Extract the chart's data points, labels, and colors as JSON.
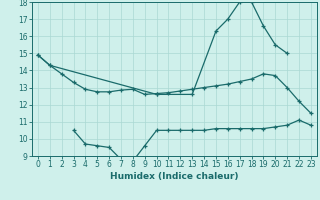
{
  "xlabel": "Humidex (Indice chaleur)",
  "bg_color": "#cff0eb",
  "line_color": "#1a6b6b",
  "grid_color": "#aad8d3",
  "ylim": [
    9,
    18
  ],
  "yticks": [
    9,
    10,
    11,
    12,
    13,
    14,
    15,
    16,
    17,
    18
  ],
  "xticks": [
    0,
    1,
    2,
    3,
    4,
    5,
    6,
    7,
    8,
    9,
    10,
    11,
    12,
    13,
    14,
    15,
    16,
    17,
    18,
    19,
    20,
    21,
    22,
    23
  ],
  "l1_x": [
    0,
    1,
    10,
    13,
    15,
    16,
    17,
    18,
    19,
    20,
    21
  ],
  "l1_y": [
    14.9,
    14.3,
    12.6,
    12.6,
    16.3,
    17.0,
    18.0,
    18.0,
    16.6,
    15.5,
    15.0
  ],
  "l2_x": [
    0,
    1,
    2,
    3,
    4,
    5,
    6,
    7,
    8,
    9,
    10,
    11,
    12,
    13,
    14,
    15,
    16,
    17,
    18,
    19,
    20,
    21,
    22,
    23
  ],
  "l2_y": [
    14.9,
    14.3,
    13.8,
    13.3,
    12.9,
    12.75,
    12.75,
    12.85,
    12.9,
    12.6,
    12.65,
    12.7,
    12.8,
    12.9,
    13.0,
    13.1,
    13.2,
    13.35,
    13.5,
    13.8,
    13.7,
    13.0,
    12.2,
    11.5
  ],
  "l3_x": [
    3,
    4,
    5,
    6,
    7,
    8,
    9,
    10,
    11,
    12,
    13,
    14,
    15,
    16,
    17,
    18,
    19,
    20,
    21,
    22,
    23
  ],
  "l3_y": [
    10.5,
    9.7,
    9.6,
    9.5,
    8.8,
    8.7,
    9.6,
    10.5,
    10.5,
    10.5,
    10.5,
    10.5,
    10.6,
    10.6,
    10.6,
    10.6,
    10.6,
    10.7,
    10.8,
    11.1,
    10.8
  ]
}
